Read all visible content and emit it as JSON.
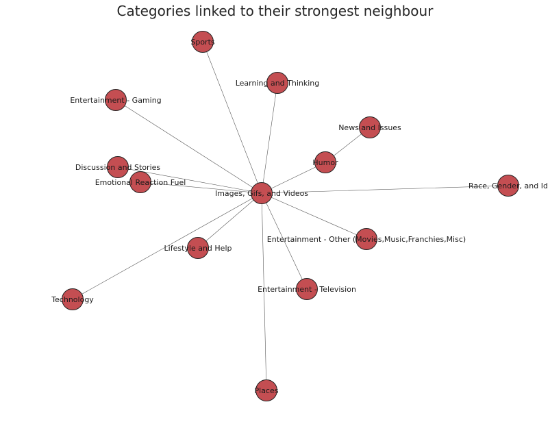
{
  "title": "Categories linked to their strongest neighbour",
  "node_fill": "#c44e52",
  "node_stroke": "#222222",
  "edge_color": "#555555",
  "nodes": [
    {
      "id": "hub",
      "label": "Images, Gifs, and Videos"
    },
    {
      "id": "sports",
      "label": "Sports"
    },
    {
      "id": "learning",
      "label": "Learning and Thinking"
    },
    {
      "id": "gaming",
      "label": "Entertainment - Gaming"
    },
    {
      "id": "news",
      "label": "News and Issues"
    },
    {
      "id": "humor",
      "label": "Humor"
    },
    {
      "id": "discussion",
      "label": "Discussion and Stories"
    },
    {
      "id": "emotional",
      "label": "Emotional Reaction Fuel"
    },
    {
      "id": "race",
      "label": "Race, Gender, and Id"
    },
    {
      "id": "ent_other",
      "label": "Entertainment - Other (Movies,Music,Franchies,Misc)"
    },
    {
      "id": "lifestyle",
      "label": "Lifestyle and Help"
    },
    {
      "id": "technology",
      "label": "Technology"
    },
    {
      "id": "television",
      "label": "Entertainment - Television"
    },
    {
      "id": "places",
      "label": "Places"
    }
  ],
  "edges": [
    [
      "hub",
      "sports"
    ],
    [
      "hub",
      "learning"
    ],
    [
      "hub",
      "gaming"
    ],
    [
      "hub",
      "humor"
    ],
    [
      "humor",
      "news"
    ],
    [
      "hub",
      "discussion"
    ],
    [
      "hub",
      "emotional"
    ],
    [
      "hub",
      "race"
    ],
    [
      "hub",
      "ent_other"
    ],
    [
      "hub",
      "lifestyle"
    ],
    [
      "hub",
      "technology"
    ],
    [
      "hub",
      "television"
    ],
    [
      "hub",
      "places"
    ]
  ]
}
